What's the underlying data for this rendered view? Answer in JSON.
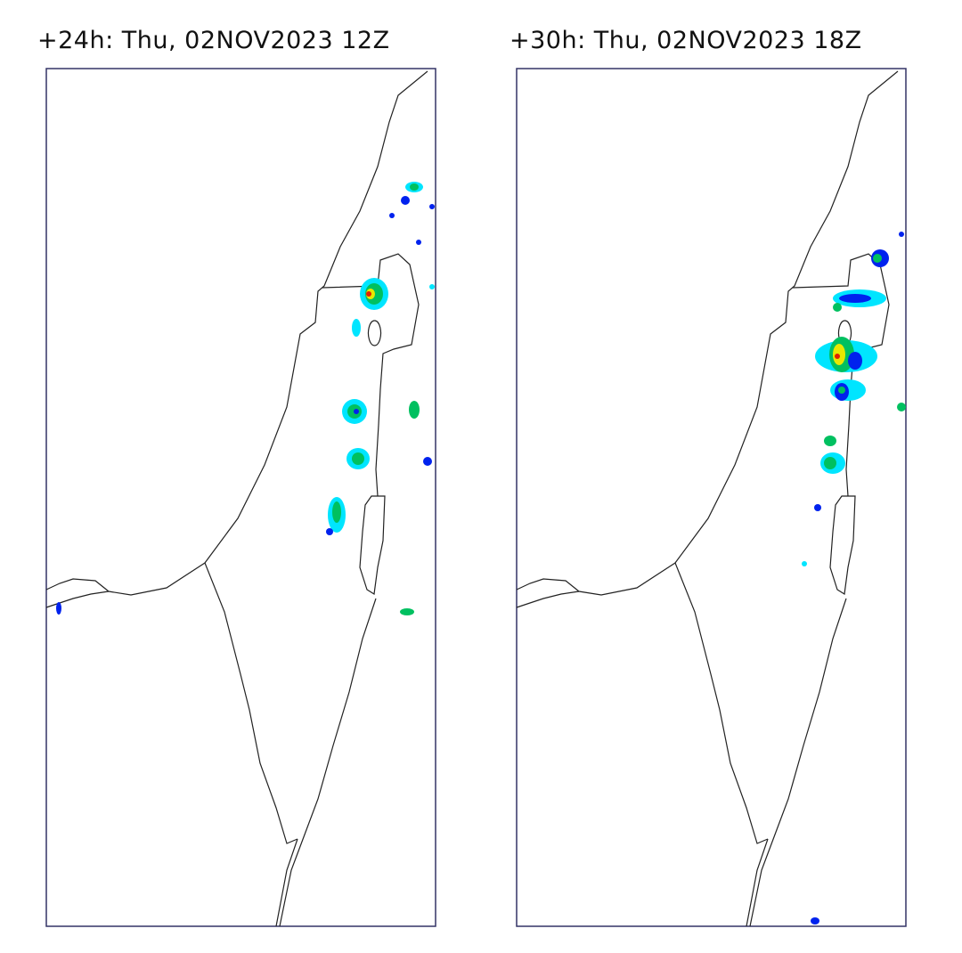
{
  "panels": [
    {
      "title": "+24h: Thu, 02NOV2023 12Z"
    },
    {
      "title": "+30h: Thu, 02NOV2023 18Z"
    }
  ],
  "colors": {
    "light_blue": "#00e5ff",
    "blue": "#0022ee",
    "green": "#00c060",
    "yellow": "#e8e800",
    "red": "#e02000",
    "outline": "#222222",
    "frame": "#333366"
  }
}
